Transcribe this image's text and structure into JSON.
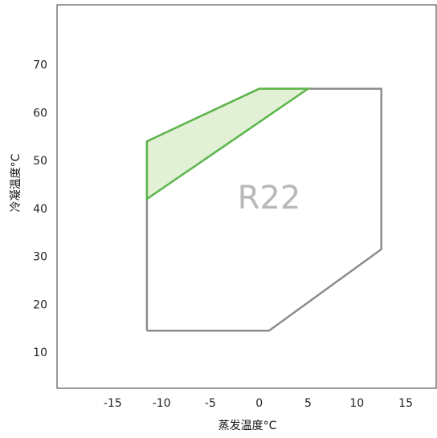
{
  "chart_data": {
    "type": "area",
    "title": "",
    "xlabel": "蒸发温度°C",
    "ylabel": "冷凝温度°C",
    "xlim": [
      -20.7,
      18.2
    ],
    "ylim": [
      2.5,
      82.5
    ],
    "x_ticks": [
      -15,
      -10,
      -5,
      0,
      5,
      10,
      15
    ],
    "y_ticks": [
      10,
      20,
      30,
      40,
      50,
      60,
      70
    ],
    "grid": false,
    "legend": "none",
    "annotation": "R22",
    "series": [
      {
        "color": "#8c8c8c",
        "fill": "none",
        "points": [
          [
            -11.5,
            14.5
          ],
          [
            1.0,
            14.5
          ],
          [
            12.5,
            31.5
          ],
          [
            12.5,
            65.0
          ],
          [
            0.0,
            65.0
          ],
          [
            -11.5,
            54.0
          ],
          [
            -11.5,
            14.5
          ]
        ]
      },
      {
        "color": "#5bb54a",
        "fill": "#e2f0d6",
        "points": [
          [
            -11.5,
            54.0
          ],
          [
            0.0,
            65.0
          ],
          [
            5.0,
            65.0
          ],
          [
            -11.5,
            42.0
          ],
          [
            -11.5,
            54.0
          ]
        ]
      }
    ]
  }
}
